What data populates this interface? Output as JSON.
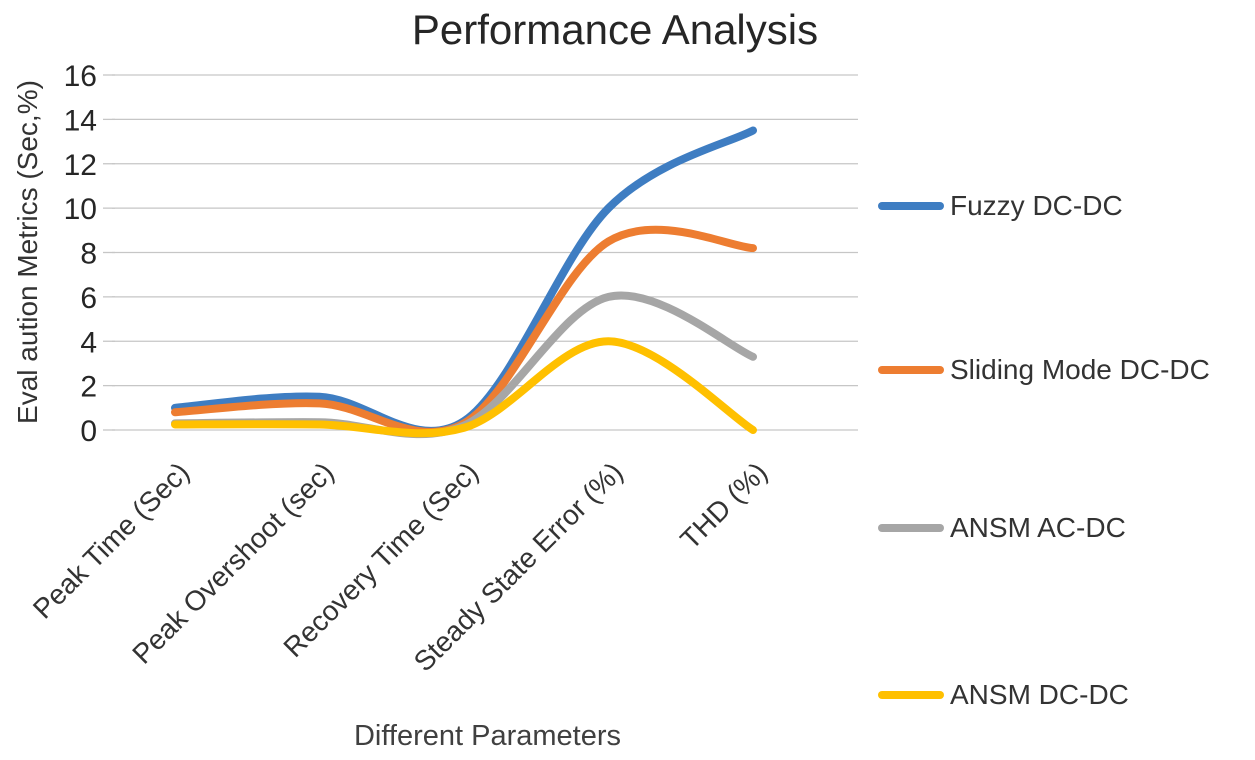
{
  "chart_data": {
    "type": "line",
    "title": "Performance Analysis",
    "xlabel": "Different Parameters",
    "ylabel": "Eval aution Metrics (Sec,%)",
    "categories": [
      "Peak Time (Sec)",
      "Peak Overshoot (sec)",
      "Recovery Time (Sec)",
      "Steady State Error (%)",
      "THD (%)"
    ],
    "series": [
      {
        "name": "Fuzzy DC-DC",
        "color": "#3E7DC2",
        "values": [
          1.0,
          1.5,
          0.4,
          10.0,
          13.5
        ]
      },
      {
        "name": "Sliding Mode DC-DC",
        "color": "#ED7D31",
        "values": [
          0.8,
          1.2,
          0.3,
          8.5,
          8.2
        ]
      },
      {
        "name": "ANSM AC-DC",
        "color": "#A6A6A6",
        "values": [
          0.3,
          0.35,
          0.2,
          6.0,
          3.3
        ]
      },
      {
        "name": "ANSM DC-DC",
        "color": "#FFC000",
        "values": [
          0.25,
          0.25,
          0.1,
          4.0,
          0.0
        ]
      }
    ],
    "ylim": [
      0,
      16
    ],
    "ytick_step": 2,
    "grid": true,
    "legend_position": "right",
    "line_style": "smooth",
    "gridline_color": "#C6C6C6",
    "text_color": "#262626"
  }
}
